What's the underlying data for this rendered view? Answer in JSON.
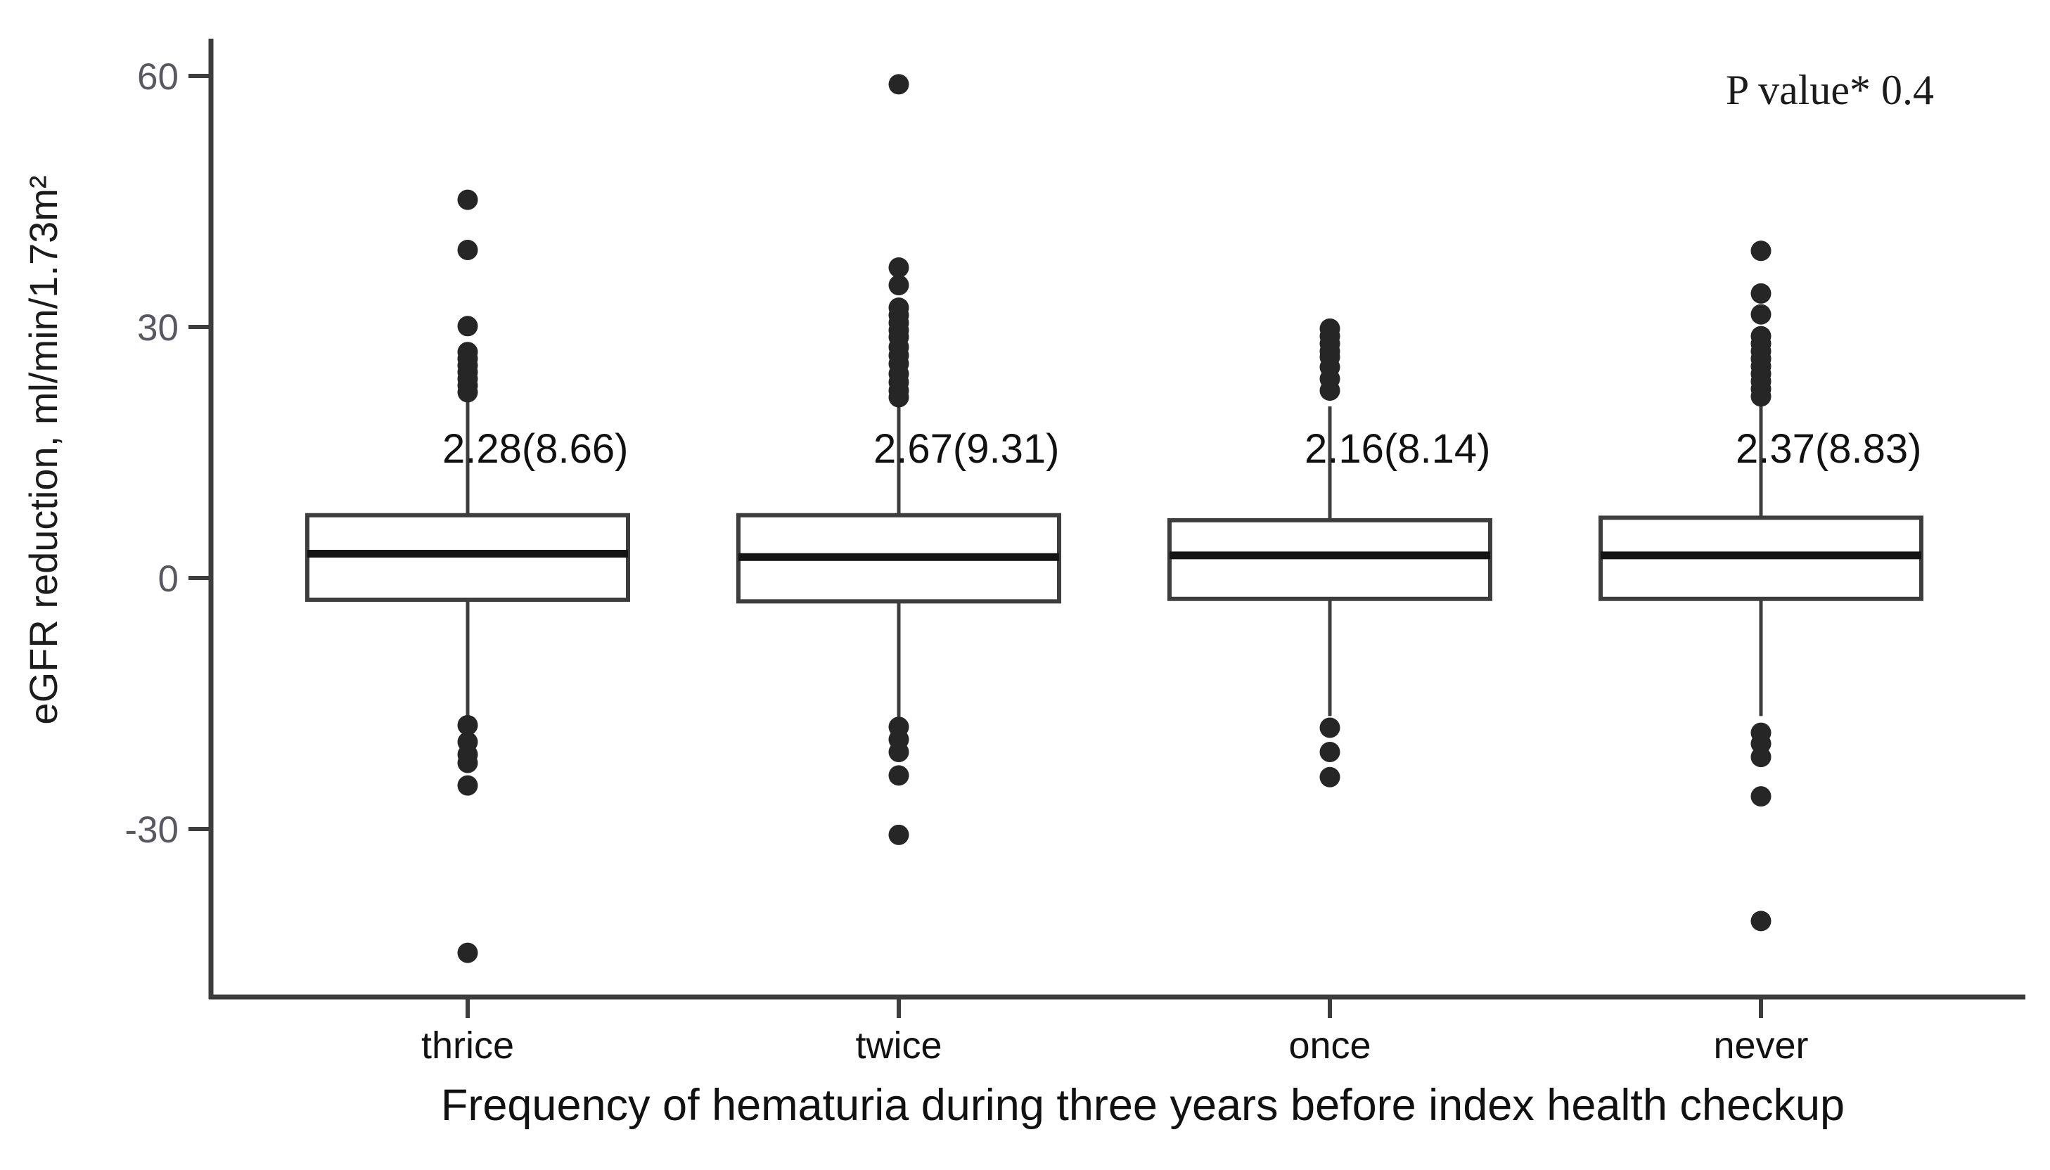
{
  "chart_data": {
    "type": "boxplot",
    "title": "",
    "ylabel": "eGFR reduction, ml/min/1.73m²",
    "xlabel": "Frequency of hematuria during three years before index health checkup",
    "annotation_note": "P value* 0.4",
    "ylim": [
      -50,
      63
    ],
    "y_ticks": [
      60,
      30,
      0,
      -30
    ],
    "grid": false,
    "legend": false,
    "categories": [
      "thrice",
      "twice",
      "once",
      "never"
    ],
    "boxes": [
      {
        "category": "thrice",
        "mean_sd_label": "2.28(8.66)",
        "q1": -2.6,
        "median": 2.9,
        "q3": 7.5,
        "whisker_low": -16.5,
        "whisker_high": 21.1,
        "outliers_above": [
          45.2,
          39.2,
          30.1,
          27.0,
          26.2,
          25.4,
          24.6,
          23.8,
          23.0,
          22.2
        ],
        "outliers_below": [
          -17.6,
          -19.6,
          -21.1,
          -22.1,
          -24.8,
          -44.8
        ]
      },
      {
        "category": "twice",
        "mean_sd_label": "2.67(9.31)",
        "q1": -2.8,
        "median": 2.5,
        "q3": 7.5,
        "whisker_low": -16.6,
        "whisker_high": 20.6,
        "outliers_above": [
          59.0,
          37.1,
          35.0,
          32.3,
          31.4,
          30.5,
          29.6,
          28.8,
          27.6,
          26.6,
          25.6,
          24.4,
          23.4,
          22.4,
          21.6
        ],
        "outliers_below": [
          -17.8,
          -19.3,
          -20.8,
          -23.6,
          -30.7
        ]
      },
      {
        "category": "once",
        "mean_sd_label": "2.16(8.14)",
        "q1": -2.5,
        "median": 2.7,
        "q3": 6.9,
        "whisker_low": -16.5,
        "whisker_high": 20.5,
        "outliers_above": [
          29.8,
          28.9,
          28.0,
          27.1,
          26.4,
          25.2,
          23.8,
          22.4
        ],
        "outliers_below": [
          -17.9,
          -20.8,
          -23.8
        ]
      },
      {
        "category": "never",
        "mean_sd_label": "2.37(8.83)",
        "q1": -2.5,
        "median": 2.7,
        "q3": 7.2,
        "whisker_low": -16.5,
        "whisker_high": 20.9,
        "outliers_above": [
          39.1,
          34.0,
          31.5,
          28.9,
          28.0,
          27.1,
          26.2,
          25.3,
          24.4,
          23.5,
          22.6,
          21.7
        ],
        "outliers_below": [
          -18.5,
          -19.8,
          -21.4,
          -26.1,
          -41.0
        ]
      }
    ],
    "colors": {
      "axis": "#3d3d3d",
      "box_border": "#3d3d3d",
      "box_fill": "#ffffff",
      "median": "#141414",
      "dot": "#262626",
      "tick_label": "#585862",
      "text": "#111111"
    }
  }
}
